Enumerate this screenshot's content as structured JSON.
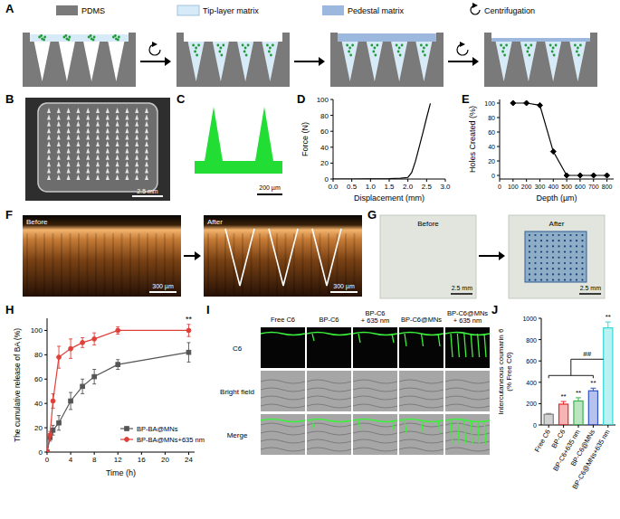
{
  "chart_data": [
    {
      "type": "line",
      "x_label": "Displacement (mm)",
      "y_label": "Force (N)",
      "xlim": [
        0,
        3
      ],
      "xticks": [
        {
          "value": 0,
          "label": "0.0"
        },
        0.5,
        {
          "value": 1,
          "label": "1.0"
        },
        1.5,
        {
          "value": 2,
          "label": "2.0"
        },
        2.5,
        {
          "value": 3,
          "label": "3.0"
        }
      ],
      "ylim": [
        0,
        100
      ],
      "yticks": [
        0,
        20,
        40,
        60,
        80,
        100
      ],
      "x": [
        0,
        0.5,
        1,
        1.5,
        1.8,
        2,
        2.1,
        2.2,
        2.3,
        2.4,
        2.5,
        2.6
      ],
      "values": [
        0,
        0,
        0.3,
        0.5,
        1,
        2,
        8,
        22,
        40,
        58,
        77,
        95
      ],
      "color": "#000000",
      "marker": "none",
      "line_style": "solid"
    },
    {
      "type": "line",
      "x_label": "Depth (µm)",
      "y_label": "Holes Created (%)",
      "xlim": [
        0,
        850
      ],
      "xticks": [
        0,
        100,
        200,
        300,
        400,
        500,
        600,
        700,
        800
      ],
      "ylim": [
        -5,
        105
      ],
      "yticks": [
        0,
        20,
        40,
        60,
        80,
        100
      ],
      "x": [
        100,
        200,
        300,
        400,
        500,
        600,
        700,
        800
      ],
      "values": [
        100,
        100,
        97,
        33,
        0,
        0,
        0,
        0
      ],
      "color": "#000000",
      "marker": "diamond",
      "line_style": "solid"
    },
    {
      "type": "line",
      "x_label": "Time (h)",
      "y_label": "The cumulative release of BA (%)",
      "xlim": [
        0,
        25
      ],
      "xticks": [
        0,
        4,
        8,
        12,
        16,
        20,
        24
      ],
      "ylim": [
        0,
        110
      ],
      "yticks": [
        0,
        20,
        40,
        60,
        80,
        100
      ],
      "x": [
        0,
        0.5,
        1,
        2,
        4,
        6,
        8,
        12,
        24
      ],
      "series": [
        {
          "name": "BP-BA@MNs",
          "color": "#555555",
          "marker": "square",
          "line_style": "solid",
          "values": [
            0,
            12,
            18,
            24,
            42,
            54,
            62,
            72,
            82
          ],
          "errors": [
            0,
            3,
            4,
            6,
            7,
            6,
            6,
            4,
            8
          ]
        },
        {
          "name": "BP-BA@MNs+635 nm",
          "color": "#e0403a",
          "marker": "circle",
          "line_style": "solid",
          "values": [
            0,
            14,
            42,
            78,
            85,
            90,
            93,
            100,
            100
          ],
          "errors": [
            0,
            3,
            6,
            9,
            8,
            4,
            5,
            3,
            5
          ]
        }
      ],
      "legend": "lower right",
      "annotations": [
        {
          "text": "**",
          "x": 24
        }
      ]
    },
    {
      "type": "bar",
      "y_label": [
        "Intercutaneous coumarin 6",
        "(% Free C6)"
      ],
      "categories": [
        "Free C6",
        "BP-C6",
        "BP-C6+635 nm",
        "BP-C6@MNs",
        "BP-C6@MNs+635 nm"
      ],
      "values": [
        100,
        195,
        225,
        320,
        910
      ],
      "errors": [
        8,
        25,
        30,
        25,
        55
      ],
      "colors": [
        "#7f7f7f",
        "#e8292b",
        "#3cb44b",
        "#3050c8",
        "#38d6d6"
      ],
      "ylim": [
        0,
        1000
      ],
      "yticks": [
        0,
        200,
        400,
        600,
        800,
        1000
      ],
      "annotations": [
        {
          "text": "**",
          "category": "BP-C6"
        },
        {
          "text": "**",
          "category": "BP-C6+635 nm"
        },
        {
          "text": "**",
          "category": "BP-C6@MNs"
        },
        {
          "text": "**",
          "category": "BP-C6@MNs+635 nm"
        }
      ],
      "bracket": {
        "text": "##",
        "group": [
          "Free C6",
          "BP-C6",
          "BP-C6+635 nm",
          "BP-C6@MNs"
        ],
        "to": "BP-C6@MNs+635 nm"
      }
    }
  ],
  "figure": {
    "panel_labels": [
      "A",
      "B",
      "C",
      "D",
      "E",
      "F",
      "G",
      "H",
      "I",
      "J"
    ],
    "schematic_legend": [
      "PDMS",
      "Tip-layer matrix",
      "Pedestal matrix",
      "Centrifugation"
    ],
    "B": {
      "scale_bar": "2.5 mm"
    },
    "C": {
      "scale_bar": "200 µm"
    },
    "F": {
      "labels": [
        "Before",
        "After"
      ],
      "scale_bars": [
        "300 µm",
        "300 µm"
      ]
    },
    "G": {
      "labels": [
        "Before",
        "After"
      ],
      "scale_bars": [
        "2.5 mm",
        "2.5 mm"
      ]
    },
    "I": {
      "columns": [
        [
          "Free C6"
        ],
        [
          "BP-C6"
        ],
        [
          "BP-C6",
          "+ 635 nm"
        ],
        [
          "BP-C6@MNs"
        ],
        [
          "BP-C6@MNs",
          "+ 635 nm"
        ]
      ],
      "rows": [
        "C6",
        "Bright field",
        "Merge"
      ]
    }
  }
}
